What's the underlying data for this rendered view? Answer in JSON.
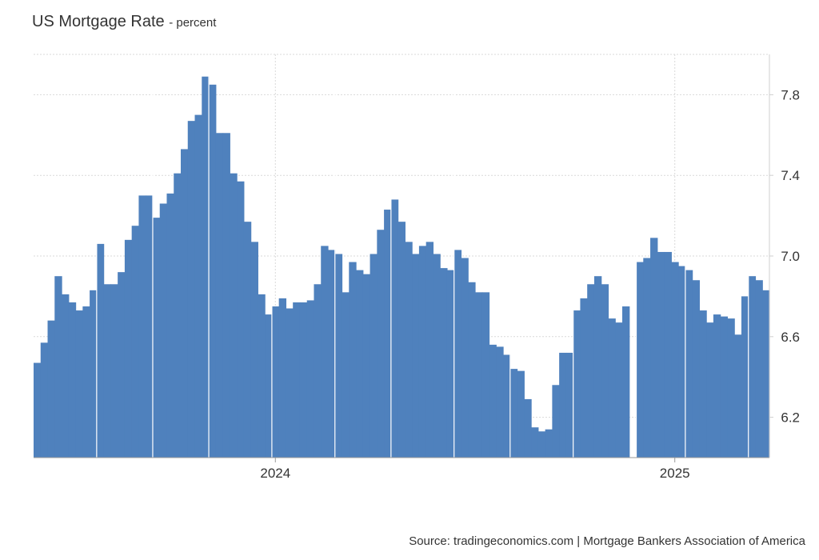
{
  "title": "US Mortgage Rate",
  "subtitle": "- percent",
  "source": "Source: tradingeconomics.com | Mortgage Bankers Association of America",
  "colors": {
    "bar": "#4f81bd",
    "grid": "#d9d9d9"
  },
  "chart_data": {
    "type": "bar",
    "title": "US Mortgage Rate",
    "ylabel": "",
    "ylim": [
      6.0,
      8.0
    ],
    "y_ticks": [
      "6.2",
      "6.6",
      "7.0",
      "7.4",
      "7.8"
    ],
    "y_tick_values": [
      6.2,
      6.6,
      7.0,
      7.4,
      7.8
    ],
    "x_tick_labels": [
      "2024",
      "2025"
    ],
    "x_tick_index": [
      34,
      91
    ],
    "grid": true,
    "y_axis_position": "right",
    "frequency": "weekly",
    "values": [
      6.47,
      6.57,
      6.68,
      6.9,
      6.81,
      6.77,
      6.73,
      6.75,
      6.83,
      7.06,
      6.86,
      6.86,
      6.92,
      7.08,
      7.15,
      7.3,
      7.3,
      7.19,
      7.26,
      7.31,
      7.41,
      7.53,
      7.67,
      7.7,
      7.89,
      7.85,
      7.61,
      7.61,
      7.41,
      7.37,
      7.17,
      7.07,
      6.81,
      6.71,
      6.75,
      6.79,
      6.74,
      6.77,
      6.77,
      6.78,
      6.86,
      7.05,
      7.03,
      7.01,
      6.82,
      6.97,
      6.93,
      6.91,
      7.01,
      7.13,
      7.23,
      7.28,
      7.17,
      7.07,
      7.01,
      7.05,
      7.07,
      7.01,
      6.94,
      6.93,
      7.03,
      6.99,
      6.87,
      6.82,
      6.82,
      6.56,
      6.55,
      6.51,
      6.44,
      6.43,
      6.29,
      6.15,
      6.13,
      6.14,
      6.36,
      6.52,
      6.52,
      6.73,
      6.79,
      6.86,
      6.9,
      6.86,
      6.69,
      6.67,
      6.75,
      null,
      6.97,
      6.99,
      7.09,
      7.02,
      7.02,
      6.97,
      6.95,
      6.93,
      6.88,
      6.73,
      6.67,
      6.71,
      6.7,
      6.69,
      6.61,
      6.8,
      6.9,
      6.88,
      6.83
    ]
  }
}
